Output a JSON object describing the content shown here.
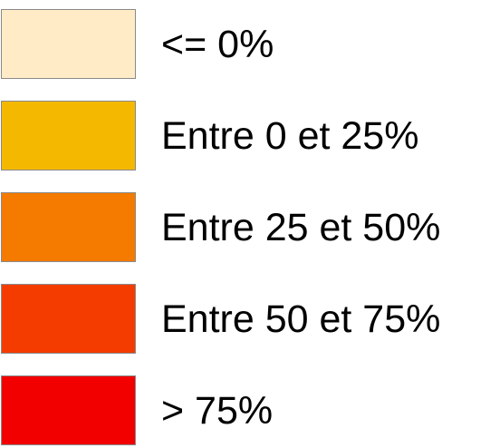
{
  "legend": {
    "items": [
      {
        "label": "<= 0%",
        "color": "#FFEBC6"
      },
      {
        "label": "Entre 0 et 25%",
        "color": "#F4B800"
      },
      {
        "label": "Entre 25 et 50%",
        "color": "#F47A00"
      },
      {
        "label": "Entre 50 et 75%",
        "color": "#F43C00"
      },
      {
        "label": "> 75%",
        "color": "#F20000"
      }
    ]
  }
}
